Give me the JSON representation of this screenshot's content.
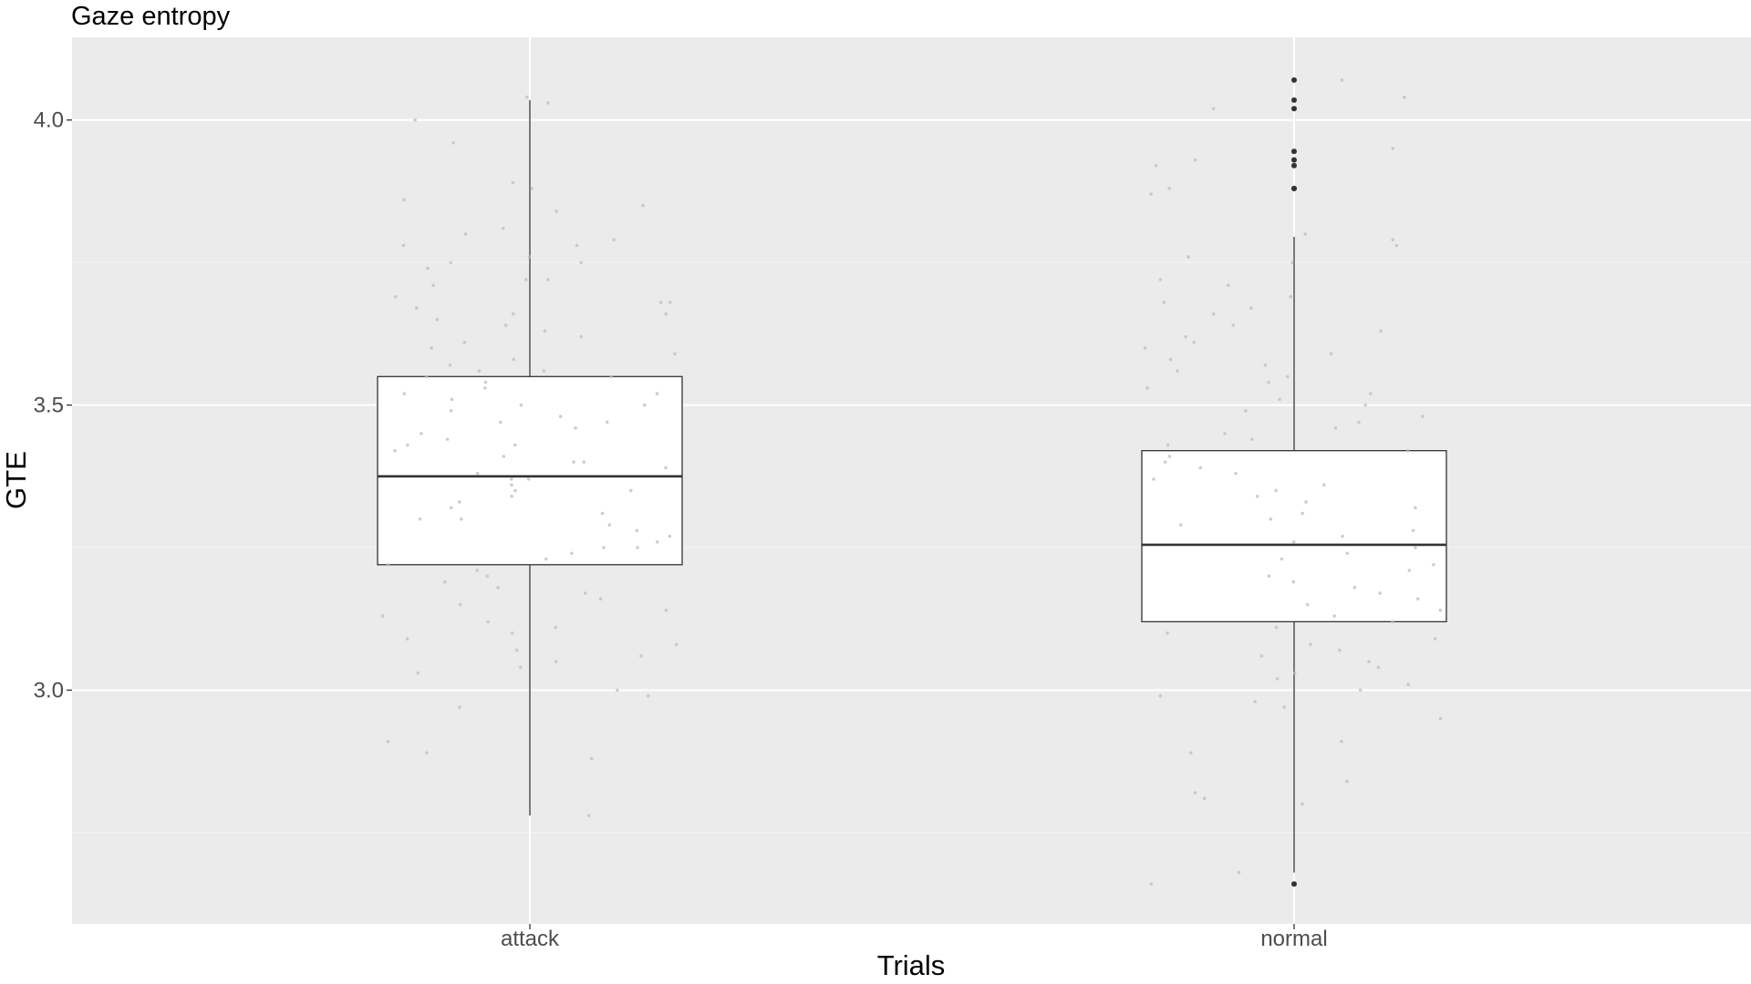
{
  "chart_data": {
    "type": "boxplot",
    "title": "Gaze entropy",
    "xlabel": "Trials",
    "ylabel": "GTE",
    "categories": [
      "attack",
      "normal"
    ],
    "ylim": [
      2.59,
      4.145
    ],
    "yticks": [
      3.0,
      3.5,
      4.0
    ],
    "ytick_labels": [
      "3.0",
      "3.5",
      "4.0"
    ],
    "grid": true,
    "colors": {
      "panel_background": "#ebebeb",
      "grid_major": "#ffffff",
      "box_fill": "#ffffff",
      "box_line": "#333333",
      "jitter_points": "#bdbdbd",
      "outliers": "#333333"
    },
    "boxes": [
      {
        "category": "attack",
        "whisker_low": 2.78,
        "q1": 3.22,
        "median": 3.375,
        "q3": 3.55,
        "whisker_high": 4.035,
        "outliers": []
      },
      {
        "category": "normal",
        "whisker_low": 2.68,
        "q1": 3.12,
        "median": 3.255,
        "q3": 3.42,
        "whisker_high": 3.795,
        "outliers": [
          4.07,
          4.035,
          4.02,
          3.945,
          3.93,
          3.92,
          3.88,
          3.88,
          2.66
        ]
      }
    ],
    "jitter_points": [
      {
        "category": "attack",
        "values": [
          4.04,
          4.03,
          4.0,
          3.96,
          3.89,
          3.88,
          3.86,
          3.85,
          3.84,
          3.81,
          3.8,
          3.79,
          3.78,
          3.78,
          3.76,
          3.75,
          3.75,
          3.74,
          3.72,
          3.72,
          3.71,
          3.69,
          3.68,
          3.68,
          3.67,
          3.66,
          3.66,
          3.65,
          3.64,
          3.63,
          3.62,
          3.61,
          3.6,
          3.59,
          3.58,
          3.57,
          3.56,
          3.56,
          3.55,
          3.55,
          3.54,
          3.53,
          3.52,
          3.52,
          3.51,
          3.5,
          3.5,
          3.49,
          3.48,
          3.47,
          3.47,
          3.46,
          3.45,
          3.44,
          3.43,
          3.43,
          3.42,
          3.41,
          3.4,
          3.4,
          3.39,
          3.38,
          3.37,
          3.37,
          3.36,
          3.35,
          3.35,
          3.34,
          3.33,
          3.32,
          3.31,
          3.3,
          3.3,
          3.29,
          3.28,
          3.27,
          3.26,
          3.25,
          3.25,
          3.24,
          3.23,
          3.22,
          3.21,
          3.2,
          3.19,
          3.18,
          3.17,
          3.16,
          3.15,
          3.14,
          3.13,
          3.12,
          3.11,
          3.1,
          3.09,
          3.08,
          3.07,
          3.06,
          3.05,
          3.04,
          3.03,
          3.0,
          2.99,
          2.97,
          2.91,
          2.89,
          2.88,
          2.78
        ]
      },
      {
        "category": "normal",
        "values": [
          4.07,
          4.04,
          4.02,
          3.95,
          3.93,
          3.92,
          3.88,
          3.87,
          3.8,
          3.79,
          3.78,
          3.76,
          3.75,
          3.72,
          3.71,
          3.69,
          3.68,
          3.67,
          3.66,
          3.64,
          3.63,
          3.62,
          3.61,
          3.6,
          3.59,
          3.58,
          3.57,
          3.56,
          3.55,
          3.54,
          3.53,
          3.52,
          3.51,
          3.5,
          3.49,
          3.48,
          3.47,
          3.46,
          3.45,
          3.44,
          3.43,
          3.42,
          3.41,
          3.4,
          3.39,
          3.38,
          3.37,
          3.36,
          3.35,
          3.34,
          3.33,
          3.32,
          3.31,
          3.3,
          3.29,
          3.28,
          3.27,
          3.26,
          3.25,
          3.24,
          3.23,
          3.22,
          3.21,
          3.2,
          3.19,
          3.18,
          3.17,
          3.16,
          3.15,
          3.14,
          3.13,
          3.12,
          3.11,
          3.1,
          3.09,
          3.08,
          3.07,
          3.06,
          3.05,
          3.04,
          3.03,
          3.02,
          3.01,
          3.0,
          2.99,
          2.98,
          2.97,
          2.95,
          2.91,
          2.89,
          2.84,
          2.82,
          2.81,
          2.8,
          2.68,
          2.66
        ]
      }
    ]
  }
}
